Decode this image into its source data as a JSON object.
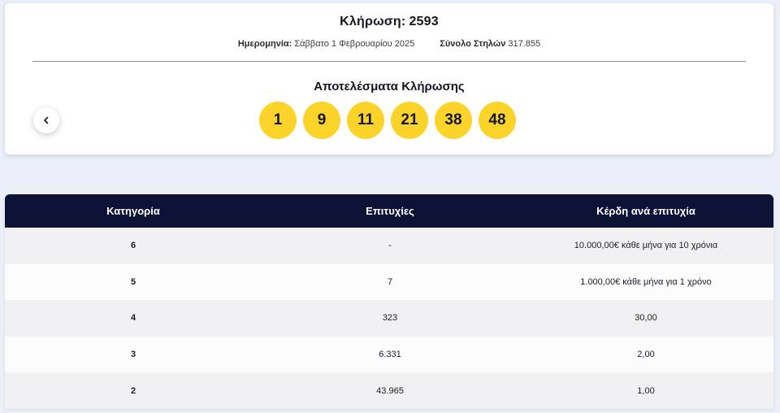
{
  "draw": {
    "title_label": "Κλήρωση:",
    "number": "2593",
    "date_label": "Ημερομηνία:",
    "date_value": "Σάββατο 1 Φεβρουαρίου 2025",
    "columns_label": "Σύνολο Στηλών",
    "columns_value": "317.855",
    "results_title": "Αποτελέσματα Κλήρωσης",
    "numbers": [
      "1",
      "9",
      "11",
      "21",
      "38",
      "48"
    ],
    "ball_color": "#fcd328"
  },
  "nav": {
    "back_icon": "chevron-left-icon"
  },
  "table": {
    "headers": [
      "Κατηγορία",
      "Επιτυχίες",
      "Κέρδη ανά επιτυχία"
    ],
    "header_bg": "#0b1236",
    "rows": [
      {
        "category": "6",
        "winners": "-",
        "prize": "10.000,00€ κάθε μήνα για 10 χρόνια"
      },
      {
        "category": "5",
        "winners": "7",
        "prize": "1.000,00€ κάθε μήνα για 1 χρόνο"
      },
      {
        "category": "4",
        "winners": "323",
        "prize": "30,00"
      },
      {
        "category": "3",
        "winners": "6.331",
        "prize": "2,00"
      },
      {
        "category": "2",
        "winners": "43.965",
        "prize": "1,00"
      }
    ]
  }
}
